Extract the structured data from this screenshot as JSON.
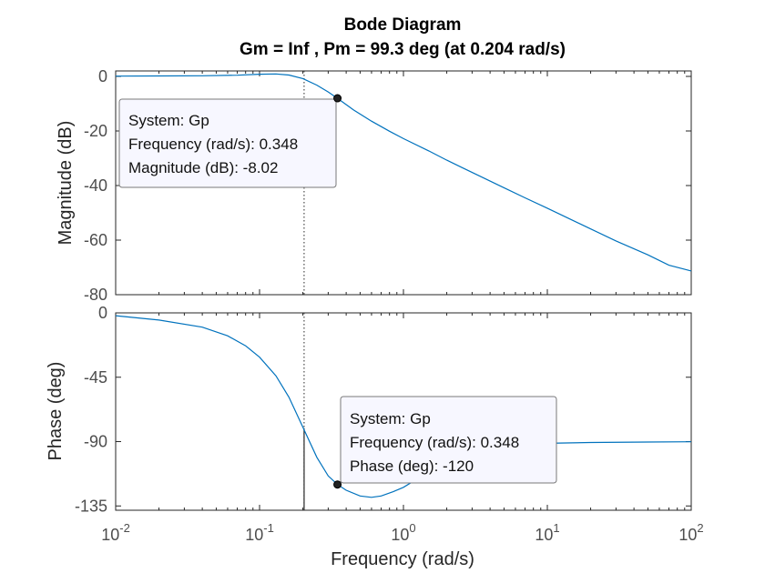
{
  "chart_data": {
    "type": "line",
    "title": "Bode Diagram",
    "subtitle": "Gm = Inf ,  Pm = 99.3 deg (at 0.204 rad/s)",
    "xlabel": "Frequency  (rad/s)",
    "xscale": "log",
    "xlim": [
      0.01,
      100
    ],
    "x_ticks": [
      {
        "value": 0.01,
        "base": "10",
        "exp": "-2"
      },
      {
        "value": 0.1,
        "base": "10",
        "exp": "-1"
      },
      {
        "value": 1,
        "base": "10",
        "exp": "0"
      },
      {
        "value": 10,
        "base": "10",
        "exp": "1"
      },
      {
        "value": 100,
        "base": "10",
        "exp": "2"
      }
    ],
    "crossover_frequency": 0.204,
    "line_color": "#0072bd",
    "panels": [
      {
        "ylabel": "Magnitude (dB)",
        "ylim": [
          -80,
          2
        ],
        "y_ticks": [
          0,
          -20,
          -40,
          -60,
          -80
        ],
        "series": {
          "x": [
            0.01,
            0.02,
            0.04,
            0.07,
            0.1,
            0.13,
            0.16,
            0.2,
            0.25,
            0.3,
            0.348,
            0.45,
            0.6,
            0.8,
            1,
            1.5,
            2,
            3,
            5,
            7,
            10,
            20,
            30,
            50,
            70,
            100
          ],
          "y": [
            0.1,
            0.15,
            0.25,
            0.45,
            0.8,
            0.9,
            0.5,
            -0.8,
            -3.2,
            -5.7,
            -8.02,
            -12.3,
            -16.4,
            -20.1,
            -22.8,
            -27.3,
            -30.7,
            -35.2,
            -40.8,
            -44.5,
            -48.3,
            -55.9,
            -60.3,
            -65.4,
            -69.2,
            -71.3
          ]
        },
        "marker": {
          "x": 0.348,
          "y": -8.02
        },
        "datatip": {
          "lines": [
            "System: Gp",
            "Frequency (rad/s): 0.348",
            "Magnitude (dB): -8.02"
          ]
        }
      },
      {
        "ylabel": "Phase (deg)",
        "ylim": [
          -138,
          0
        ],
        "y_ticks": [
          0,
          -45,
          -90,
          -135
        ],
        "series": {
          "x": [
            0.01,
            0.02,
            0.04,
            0.06,
            0.08,
            0.1,
            0.13,
            0.16,
            0.2,
            0.25,
            0.3,
            0.348,
            0.4,
            0.5,
            0.6,
            0.7,
            0.85,
            1,
            1.3,
            1.7,
            2,
            3,
            5,
            10,
            20,
            50,
            100
          ],
          "y": [
            -2,
            -5,
            -10,
            -16,
            -23,
            -31,
            -44,
            -59,
            -80,
            -101,
            -114,
            -120,
            -124,
            -128,
            -129,
            -128,
            -125,
            -122,
            -115,
            -106,
            -101,
            -95.5,
            -92.5,
            -91.2,
            -90.6,
            -90.3,
            -90.1
          ]
        },
        "marker": {
          "x": 0.348,
          "y": -120
        },
        "datatip": {
          "lines": [
            "System: Gp",
            "Frequency (rad/s): 0.348",
            "Phase (deg): -120"
          ]
        }
      }
    ]
  }
}
